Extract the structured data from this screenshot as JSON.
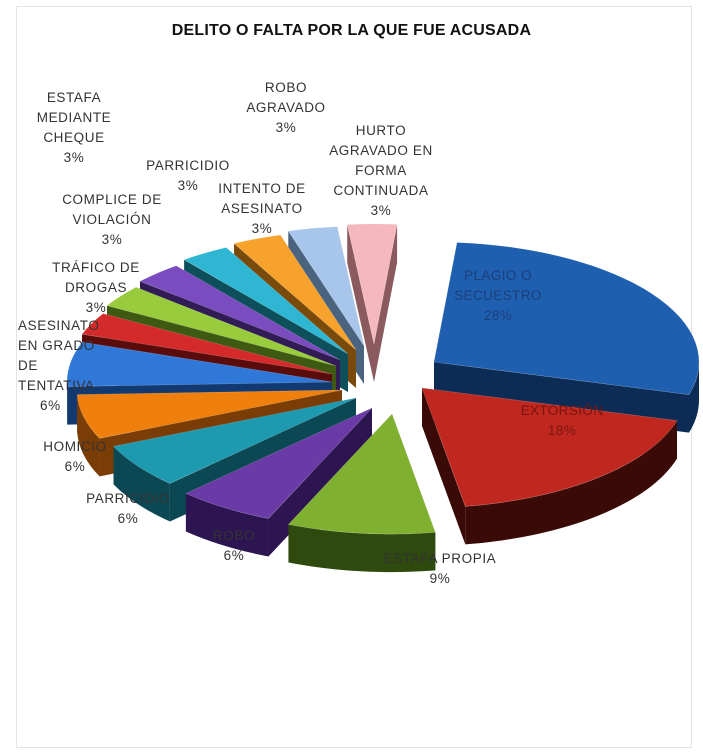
{
  "chart_data": {
    "type": "pie",
    "title": "DELITO O FALTA POR LA QUE FUE ACUSADA",
    "slices": [
      {
        "label": "PLAGIO O SECUESTRO",
        "value": 28,
        "value_label": "28%",
        "color": "#1f5fb0",
        "dark": "#0c2c55",
        "inside": true,
        "text_color": "#1b3f7a"
      },
      {
        "label": "EXTORSIÓN",
        "value": 18,
        "value_label": "18%",
        "color": "#c0271f",
        "dark": "#3a0a07",
        "inside": true,
        "text_color": "#7a1410"
      },
      {
        "label": "ESTAFA PROPIA",
        "value": 9,
        "value_label": "9%",
        "color": "#7fb030",
        "dark": "#2f4a0f",
        "inside": false
      },
      {
        "label": "ROBO",
        "value": 6,
        "value_label": "6%",
        "color": "#6a3aa6",
        "dark": "#2c1550",
        "inside": false
      },
      {
        "label": "PARRICIDIO",
        "value": 6,
        "value_label": "6%",
        "color": "#1e9ab0",
        "dark": "#0c4853",
        "inside": false
      },
      {
        "label": "HOMICIO",
        "value": 6,
        "value_label": "6%",
        "color": "#f0800e",
        "dark": "#7a3d05",
        "inside": false
      },
      {
        "label": "ASESINATO EN GRADO DE TENTATIVA",
        "value": 6,
        "value_label": "6%",
        "color": "#2f78d8",
        "dark": "#123a70",
        "inside": false
      },
      {
        "label": "TRÁFICO DE DROGAS",
        "value": 3,
        "value_label": "3%",
        "color": "#d42a2a",
        "dark": "#5a0c0c",
        "inside": false
      },
      {
        "label": "COMPLICE DE VIOLACIÓN",
        "value": 3,
        "value_label": "3%",
        "color": "#98cc3c",
        "dark": "#3e5a12",
        "inside": false
      },
      {
        "label": "ESTAFA MEDIANTE CHEQUE",
        "value": 3,
        "value_label": "3%",
        "color": "#7a4cc0",
        "dark": "#321c55",
        "inside": false
      },
      {
        "label": "PARRICIDIO",
        "value": 3,
        "value_label": "3%",
        "color": "#2fb6d2",
        "dark": "#0e4f5c",
        "inside": false
      },
      {
        "label": "INTENTO DE ASESINATO",
        "value": 3,
        "value_label": "3%",
        "color": "#f7a22c",
        "dark": "#7a4a0a",
        "inside": false
      },
      {
        "label": "ROBO AGRAVADO",
        "value": 3,
        "value_label": "3%",
        "color": "#a8c6ec",
        "dark": "#4a6480",
        "inside": false
      },
      {
        "label": "HURTO AGRAVADO EN FORMA CONTINUADA",
        "value": 3,
        "value_label": "3%",
        "color": "#f4b8bd",
        "dark": "#8a5a5e",
        "inside": false
      }
    ],
    "legend": "none",
    "style": "3D exploded pie"
  }
}
